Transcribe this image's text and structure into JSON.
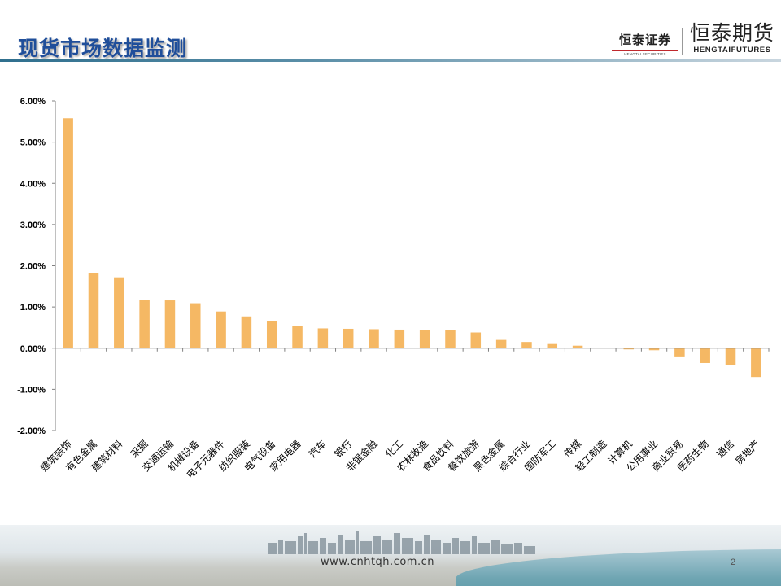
{
  "header": {
    "title": "现货市场数据监测",
    "logo_securities": "恒泰证券",
    "logo_securities_sub": "HENGTAI SECURITIES",
    "logo_futures": "恒泰期货",
    "logo_futures_sub": "HENGTAIFUTURES"
  },
  "footer": {
    "website": "www.cnhtqh.com.cn",
    "page_number": "2"
  },
  "colors": {
    "bar": "#f5b864",
    "title": "#1f4e9a",
    "axis": "#808080"
  },
  "chart_data": {
    "type": "bar",
    "categories": [
      "建筑装饰",
      "有色金属",
      "建筑材料",
      "采掘",
      "交通运输",
      "机械设备",
      "电子元器件",
      "纺织服装",
      "电气设备",
      "家用电器",
      "汽车",
      "银行",
      "非银金融",
      "化工",
      "农林牧渔",
      "食品饮料",
      "餐饮旅游",
      "黑色金属",
      "综合行业",
      "国防军工",
      "传媒",
      "轻工制造",
      "计算机",
      "公用事业",
      "商业贸易",
      "医药生物",
      "通信",
      "房地产"
    ],
    "values": [
      5.58,
      1.82,
      1.72,
      1.17,
      1.16,
      1.09,
      0.89,
      0.77,
      0.65,
      0.54,
      0.48,
      0.47,
      0.46,
      0.45,
      0.44,
      0.43,
      0.38,
      0.2,
      0.15,
      0.1,
      0.06,
      0.0,
      -0.02,
      -0.05,
      -0.22,
      -0.36,
      -0.4,
      -0.7
    ],
    "yticks": [
      "6.00%",
      "5.00%",
      "4.00%",
      "3.00%",
      "2.00%",
      "1.00%",
      "0.00%",
      "-1.00%",
      "-2.00%"
    ],
    "ylim": [
      -2,
      6
    ],
    "title": "",
    "xlabel": "",
    "ylabel": "",
    "grid": false,
    "legend": "none"
  }
}
